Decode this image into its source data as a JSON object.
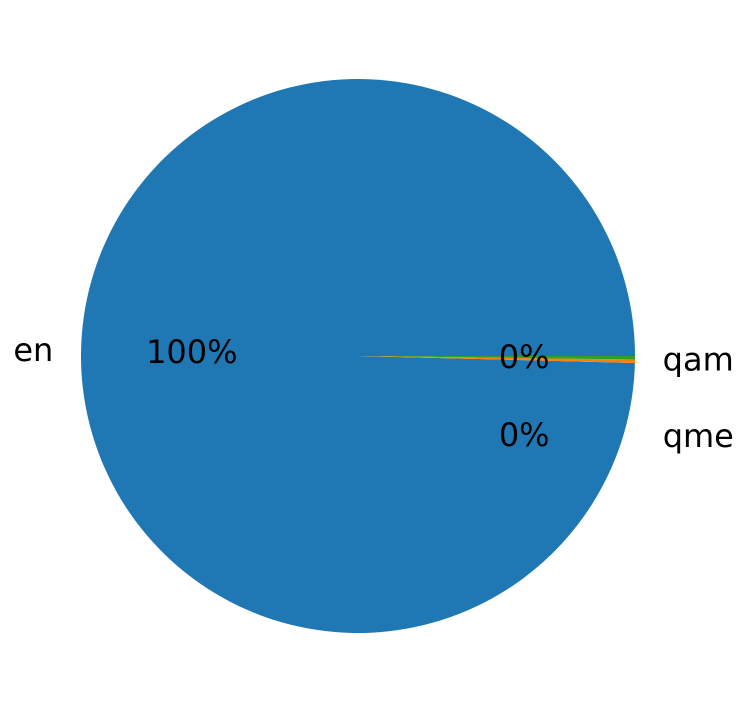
{
  "chart_data": {
    "type": "pie",
    "categories": [
      "en",
      "qam",
      "qme"
    ],
    "values": [
      99.6,
      0.2,
      0.2
    ],
    "pct_labels": [
      "100%",
      "0%",
      "0%"
    ],
    "colors": [
      "#1f77b4",
      "#ff7f0e",
      "#2ca02c"
    ],
    "start_angle": 0,
    "direction": "counterclockwise",
    "title": ""
  }
}
